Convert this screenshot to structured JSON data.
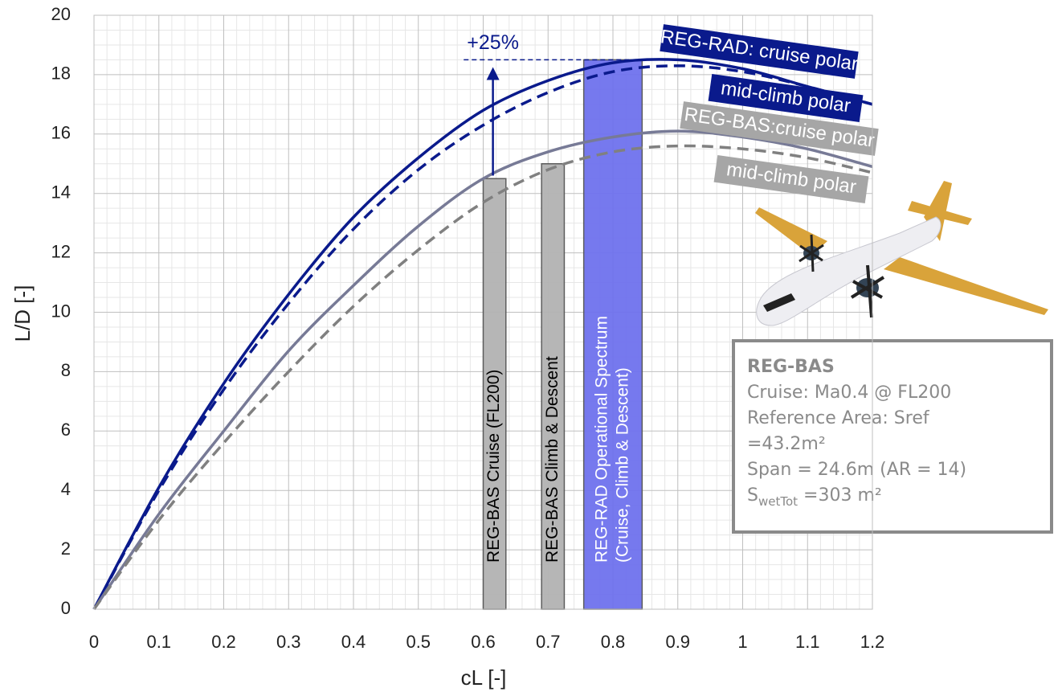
{
  "chart_data": {
    "type": "line",
    "x_label": "cL [-]",
    "y_label": "L/D [-]",
    "x": [
      0,
      0.1,
      0.2,
      0.3,
      0.4,
      0.5,
      0.6,
      0.7,
      0.8,
      0.9,
      1,
      1.1,
      1.2
    ],
    "series": [
      {
        "name": "REG-RAD: cruise polar",
        "color": "#0a1a8c",
        "dashed": false,
        "values": [
          0,
          4.1,
          7.6,
          10.6,
          13.2,
          15.2,
          16.8,
          17.8,
          18.4,
          18.5,
          18.2,
          17.6,
          17.0
        ]
      },
      {
        "name": "mid-climb polar",
        "color": "#0a1a8c",
        "dashed": true,
        "values": [
          0,
          4.0,
          7.4,
          10.3,
          12.8,
          14.8,
          16.3,
          17.4,
          18.1,
          18.3,
          18.1,
          17.6,
          17.0
        ]
      },
      {
        "name": "REG-BAS:cruise polar",
        "color": "#777a96",
        "dashed": false,
        "values": [
          0,
          3.2,
          6.0,
          8.7,
          10.9,
          12.9,
          14.5,
          15.4,
          15.9,
          16.1,
          15.9,
          15.5,
          14.9
        ]
      },
      {
        "name": "mid-climb polar",
        "color": "#808080",
        "dashed": true,
        "values": [
          0,
          3.0,
          5.6,
          8.0,
          10.2,
          12.1,
          13.7,
          14.8,
          15.4,
          15.6,
          15.5,
          15.2,
          14.7
        ]
      }
    ],
    "bands": [
      {
        "label": [
          "REG-BAS Cruise (FL200)"
        ],
        "x": [
          0.6,
          0.635
        ],
        "top": 14.5,
        "color": "#b3b3b3",
        "text_color": "#000000"
      },
      {
        "label": [
          "REG-BAS Climb & Descent"
        ],
        "x": [
          0.69,
          0.725
        ],
        "top": 15.0,
        "color": "#b3b3b3",
        "text_color": "#000000"
      },
      {
        "label": [
          "REG-RAD Operational Spectrum",
          "(Cruise, Climb & Descent)"
        ],
        "x": [
          0.755,
          0.845
        ],
        "top": 18.5,
        "color": "#6f72ee",
        "text_color": "#ffffff"
      }
    ],
    "annotation": {
      "text": "+25%",
      "x": 0.615,
      "from": 14.6,
      "to": 18.2,
      "ref_level": 18.5,
      "ref_x": [
        0.57,
        0.9
      ]
    },
    "info_box": {
      "title": "REG-BAS",
      "lines": [
        "Cruise: Ma0.4 @ FL200",
        "Reference Area: Sref",
        "=43.2m²",
        "Span = 24.6m (AR = 14)"
      ],
      "last": [
        "S",
        "wetTot",
        " =303 m²"
      ]
    },
    "xlim": [
      0,
      1.2
    ],
    "ylim": [
      0,
      20
    ],
    "xticks": [
      0,
      0.1,
      0.2,
      0.3,
      0.4,
      0.5,
      0.6,
      0.7,
      0.8,
      0.9,
      1,
      1.1,
      1.2
    ],
    "yticks": [
      0,
      2,
      4,
      6,
      8,
      10,
      12,
      14,
      16,
      18,
      20
    ],
    "grid": true
  }
}
